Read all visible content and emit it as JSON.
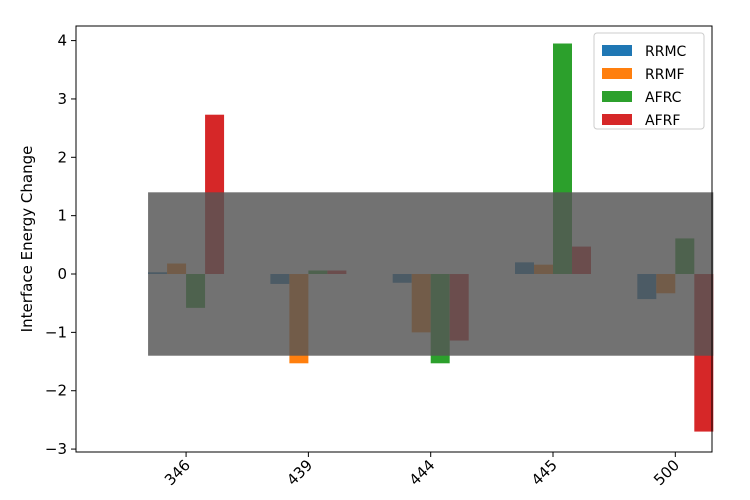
{
  "chart_data": {
    "type": "bar",
    "title": "",
    "xlabel": "",
    "ylabel": "Interface Energy Change",
    "categories": [
      "346",
      "439",
      "444",
      "445",
      "500"
    ],
    "series": [
      {
        "name": "RRMC",
        "color": "#1f77b4",
        "values": [
          0.03,
          -0.17,
          -0.15,
          0.2,
          -0.43
        ]
      },
      {
        "name": "RRMF",
        "color": "#ff7f0e",
        "values": [
          0.18,
          -1.53,
          -1.0,
          0.16,
          -0.33
        ]
      },
      {
        "name": "AFRC",
        "color": "#2ca02c",
        "values": [
          -0.58,
          0.06,
          -1.53,
          3.95,
          0.61
        ]
      },
      {
        "name": "AFRF",
        "color": "#d62728",
        "values": [
          2.73,
          0.06,
          -1.14,
          0.47,
          -2.7
        ]
      }
    ],
    "ylim": [
      -3.05,
      4.25
    ],
    "yticks": [
      "-3",
      "-2",
      "-1",
      "0",
      "1",
      "2",
      "3",
      "4"
    ],
    "shaded_band": {
      "ymin": -1.4,
      "ymax": 1.4,
      "color": "#555555",
      "opacity": 0.83
    },
    "grid": false,
    "legend_position": "top-right"
  }
}
